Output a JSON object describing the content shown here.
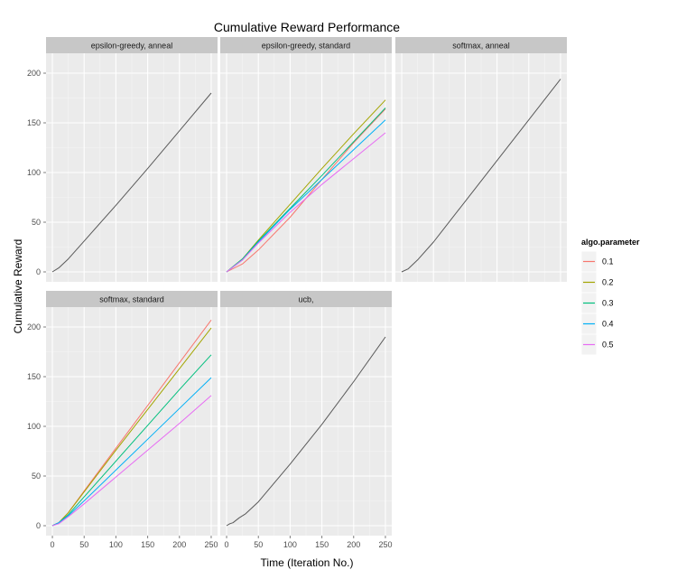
{
  "chart_data": {
    "type": "line",
    "title": "Cumulative Reward Performance",
    "xlabel": "Time (Iteration No.)",
    "ylabel": "Cumulative Reward",
    "x_ticks": [
      0,
      50,
      100,
      150,
      200,
      250
    ],
    "y_ticks": [
      0,
      50,
      100,
      150,
      200
    ],
    "xlim": [
      -10,
      260
    ],
    "ylim": [
      -10,
      220
    ],
    "legend": {
      "title": "algo.parameter",
      "position": "right",
      "entries": [
        {
          "name": "0.1",
          "color": "#F8766D"
        },
        {
          "name": "0.2",
          "color": "#A3A500"
        },
        {
          "name": "0.3",
          "color": "#00BF7D"
        },
        {
          "name": "0.4",
          "color": "#00B0F6"
        },
        {
          "name": "0.5",
          "color": "#E76BF3"
        }
      ]
    },
    "default_color": "#595959",
    "panels": [
      {
        "label": "epsilon-greedy, anneal",
        "series": [
          {
            "x": [
              0,
              10,
              25,
              50,
              100,
              150,
              200,
              250
            ],
            "y": [
              0,
              4,
              13,
              31,
              67,
              104,
              142,
              180
            ],
            "color": "#595959"
          }
        ]
      },
      {
        "label": "epsilon-greedy, standard",
        "series": [
          {
            "name": "0.1",
            "x": [
              0,
              25,
              50,
              100,
              150,
              200,
              250
            ],
            "y": [
              0,
              8,
              22,
              55,
              93,
              130,
              164
            ]
          },
          {
            "name": "0.2",
            "x": [
              0,
              25,
              50,
              100,
              150,
              200,
              250
            ],
            "y": [
              0,
              13,
              32,
              68,
              104,
              139,
              173
            ]
          },
          {
            "name": "0.3",
            "x": [
              0,
              25,
              50,
              100,
              150,
              200,
              250
            ],
            "y": [
              0,
              13,
              31,
              64,
              97,
              131,
              165
            ]
          },
          {
            "name": "0.4",
            "x": [
              0,
              25,
              50,
              100,
              150,
              200,
              250
            ],
            "y": [
              0,
              12,
              30,
              63,
              93,
              123,
              153
            ]
          },
          {
            "name": "0.5",
            "x": [
              0,
              25,
              50,
              100,
              150,
              200,
              250
            ],
            "y": [
              0,
              12,
              29,
              60,
              88,
              114,
              140
            ]
          }
        ]
      },
      {
        "label": "softmax, anneal",
        "series": [
          {
            "x": [
              0,
              10,
              25,
              50,
              100,
              150,
              200,
              250
            ],
            "y": [
              0,
              3,
              12,
              30,
              71,
              112,
              153,
              194
            ],
            "color": "#595959"
          }
        ]
      },
      {
        "label": "softmax, standard",
        "series": [
          {
            "name": "0.1",
            "x": [
              0,
              10,
              25,
              50,
              100,
              150,
              200,
              250
            ],
            "y": [
              0,
              3,
              13,
              35,
              78,
              121,
              164,
              207
            ]
          },
          {
            "name": "0.2",
            "x": [
              0,
              10,
              25,
              50,
              100,
              150,
              200,
              250
            ],
            "y": [
              0,
              3,
              13,
              34,
              76,
              117,
              158,
              199
            ]
          },
          {
            "name": "0.3",
            "x": [
              0,
              10,
              25,
              50,
              100,
              150,
              200,
              250
            ],
            "y": [
              0,
              3,
              11,
              29,
              65,
              101,
              137,
              172
            ]
          },
          {
            "name": "0.4",
            "x": [
              0,
              10,
              25,
              50,
              100,
              150,
              200,
              250
            ],
            "y": [
              0,
              3,
              10,
              25,
              56,
              87,
              118,
              149
            ]
          },
          {
            "name": "0.5",
            "x": [
              0,
              10,
              25,
              50,
              100,
              150,
              200,
              250
            ],
            "y": [
              0,
              2,
              9,
              22,
              49,
              76,
              103,
              131
            ]
          }
        ]
      },
      {
        "label": "ucb,",
        "series": [
          {
            "x": [
              0,
              5,
              10,
              20,
              30,
              50,
              100,
              150,
              200,
              250
            ],
            "y": [
              0,
              2,
              3,
              8,
              12,
              24,
              62,
              102,
              145,
              190
            ],
            "color": "#595959"
          }
        ]
      }
    ]
  }
}
